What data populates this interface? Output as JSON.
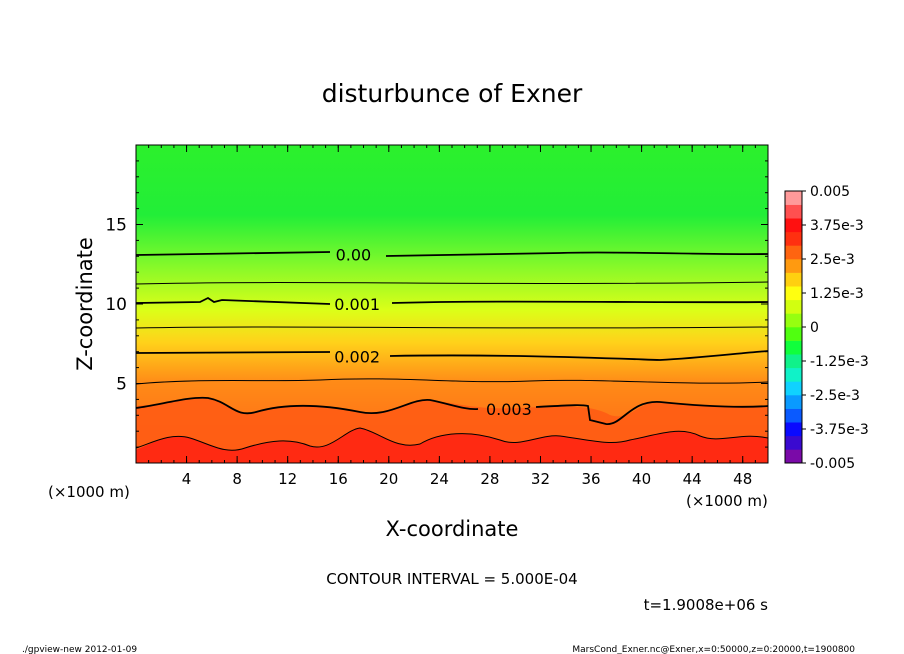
{
  "chart_data": {
    "type": "heatmap",
    "title": "disturbunce of Exner",
    "xlabel": "X-coordinate",
    "ylabel": "Z-coordinate",
    "x_unit": "(×1000 m)",
    "y_unit": "(×1000 m)",
    "xlim": [
      0,
      50
    ],
    "ylim": [
      0,
      20
    ],
    "x_ticks": [
      4,
      8,
      12,
      16,
      20,
      24,
      28,
      32,
      36,
      40,
      44,
      48
    ],
    "y_ticks": [
      5,
      10,
      15
    ],
    "contour_labels": [
      {
        "text": "0.00",
        "x": 17.2,
        "z": 13.1
      },
      {
        "text": "0.001",
        "x": 17.5,
        "z": 10.0
      },
      {
        "text": "0.002",
        "x": 17.5,
        "z": 6.7
      },
      {
        "text": "0.003",
        "x": 29.5,
        "z": 3.4
      }
    ],
    "colorbar": {
      "labels": [
        "0.005",
        "3.75e-3",
        "2.5e-3",
        "1.25e-3",
        "0",
        "-1.25e-3",
        "-2.5e-3",
        "-3.75e-3",
        "-0.005"
      ],
      "min": -0.005,
      "max": 0.005,
      "colors": [
        "#7a0aa8",
        "#3a0ad0",
        "#0a0aff",
        "#0a5aff",
        "#0a9aff",
        "#10d2ff",
        "#10f2c8",
        "#10f28a",
        "#10ff3c",
        "#50ff10",
        "#96ff10",
        "#d2ff10",
        "#ffff10",
        "#ffd010",
        "#ff9a10",
        "#ff6410",
        "#ff3010",
        "#ff1010",
        "#ff5050",
        "#ff9a9a"
      ]
    },
    "contour_interval_text": "CONTOUR INTERVAL = 5.000E-04",
    "time_text": "t=1.9008e+06 s"
  },
  "footer": {
    "left": "./gpview-new  2012-01-09",
    "right": "MarsCond_Exner.nc@Exner,x=0:50000,z=0:20000,t=1900800"
  }
}
